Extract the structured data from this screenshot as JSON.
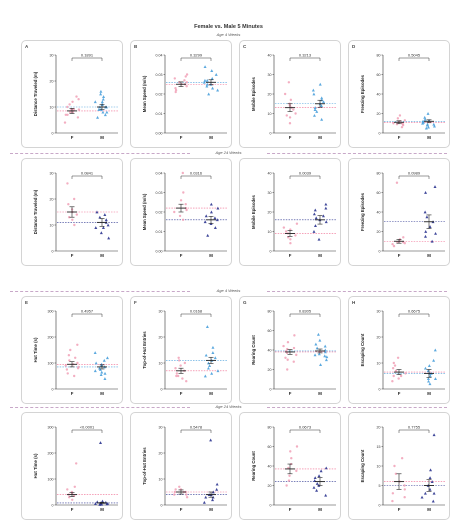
{
  "figure": {
    "title": "Female vs. Male 5 Minutes",
    "age_labels": [
      "Age 4 Weeks",
      "Age 24 Weeks",
      "Age 4 Weeks",
      "Age 24 Weeks"
    ]
  },
  "colors": {
    "female": "#f1a0b6",
    "female_line": "#f06a8f",
    "male_light": "#4aa0dc",
    "male_dark": "#2c3590",
    "error_bar": "#222222",
    "separator": "#c8a8c8",
    "panel_border": "#d4d4d4"
  },
  "chart_data": [
    {
      "letter": "A",
      "type": "scatter",
      "ylabel": "Distance Traveled (m)",
      "yticks": [
        "0",
        "10",
        "20",
        "30"
      ],
      "ylim": [
        0,
        30
      ],
      "categories": [
        "F",
        "M"
      ],
      "p_value": "0.1891",
      "male_color": "light",
      "series": [
        {
          "name": "F",
          "mean": 8.5,
          "sem": 1.0,
          "values": [
            4,
            6,
            7,
            8,
            8,
            9,
            9,
            10,
            11,
            12,
            13,
            14,
            7,
            9
          ]
        },
        {
          "name": "M",
          "mean": 10,
          "sem": 0.9,
          "values": [
            6,
            7,
            8,
            9,
            9,
            10,
            10,
            11,
            11,
            12,
            12,
            13,
            14,
            15,
            8,
            10,
            16
          ]
        }
      ]
    },
    {
      "letter": "B",
      "type": "scatter",
      "ylabel": "Mean Speed (m/s)",
      "yticks": [
        "0.00",
        "0.01",
        "0.02",
        "0.03",
        "0.04"
      ],
      "ylim": [
        0,
        0.04
      ],
      "categories": [
        "F",
        "M"
      ],
      "p_value": "0.3299",
      "male_color": "light",
      "series": [
        {
          "name": "F",
          "mean": 0.025,
          "sem": 0.0012,
          "values": [
            0.021,
            0.023,
            0.024,
            0.025,
            0.025,
            0.026,
            0.027,
            0.028,
            0.029,
            0.03,
            0.022,
            0.026
          ]
        },
        {
          "name": "M",
          "mean": 0.026,
          "sem": 0.0013,
          "values": [
            0.02,
            0.022,
            0.024,
            0.025,
            0.026,
            0.027,
            0.028,
            0.03,
            0.032,
            0.034,
            0.023,
            0.027,
            0.025
          ]
        }
      ]
    },
    {
      "letter": "C",
      "type": "scatter",
      "ylabel": "Mobile Episodes",
      "yticks": [
        "0",
        "10",
        "20",
        "30",
        "40"
      ],
      "ylim": [
        0,
        40
      ],
      "categories": [
        "F",
        "M"
      ],
      "p_value": "0.3213",
      "male_color": "light",
      "series": [
        {
          "name": "F",
          "mean": 13,
          "sem": 2.0,
          "values": [
            5,
            8,
            10,
            12,
            13,
            15,
            17,
            20,
            26,
            9,
            14
          ]
        },
        {
          "name": "M",
          "mean": 15,
          "sem": 1.8,
          "values": [
            7,
            9,
            11,
            13,
            15,
            16,
            18,
            20,
            22,
            25,
            12,
            14,
            17
          ]
        }
      ]
    },
    {
      "letter": "D",
      "type": "scatter",
      "ylabel": "Freezing Episodes",
      "yticks": [
        "0",
        "20",
        "40",
        "60",
        "80"
      ],
      "ylim": [
        0,
        80
      ],
      "categories": [
        "F",
        "M"
      ],
      "p_value": "0.5045",
      "male_color": "light",
      "series": [
        {
          "name": "F",
          "mean": 11,
          "sem": 1.5,
          "values": [
            6,
            8,
            9,
            10,
            11,
            12,
            13,
            15,
            18,
            10,
            9
          ]
        },
        {
          "name": "M",
          "mean": 12,
          "sem": 1.5,
          "values": [
            5,
            7,
            8,
            9,
            10,
            12,
            13,
            14,
            16,
            20,
            11,
            9,
            6
          ]
        }
      ]
    },
    {
      "letter": "",
      "type": "scatter",
      "ylabel": "Distance Traveled (m)",
      "yticks": [
        "0",
        "10",
        "20",
        "30"
      ],
      "ylim": [
        0,
        30
      ],
      "categories": [
        "F",
        "M"
      ],
      "p_value": "0.0841",
      "male_color": "dark",
      "series": [
        {
          "name": "F",
          "mean": 15,
          "sem": 2.0,
          "values": [
            10,
            12,
            14,
            15,
            16,
            18,
            20,
            26,
            13
          ]
        },
        {
          "name": "M",
          "mean": 11,
          "sem": 1.5,
          "values": [
            5,
            7,
            9,
            10,
            11,
            12,
            13,
            15,
            14,
            9
          ]
        }
      ]
    },
    {
      "letter": "",
      "type": "scatter",
      "ylabel": "Mean Speed (m/s)",
      "yticks": [
        "0.00",
        "0.01",
        "0.02",
        "0.03",
        "0.04"
      ],
      "ylim": [
        0,
        0.04
      ],
      "categories": [
        "F",
        "M"
      ],
      "p_value": "0.0316",
      "male_color": "dark",
      "series": [
        {
          "name": "F",
          "mean": 0.022,
          "sem": 0.002,
          "values": [
            0.016,
            0.018,
            0.02,
            0.022,
            0.024,
            0.026,
            0.03,
            0.04,
            0.021
          ]
        },
        {
          "name": "M",
          "mean": 0.016,
          "sem": 0.0018,
          "values": [
            0.008,
            0.012,
            0.014,
            0.016,
            0.017,
            0.018,
            0.02,
            0.022,
            0.024,
            0.015
          ]
        }
      ]
    },
    {
      "letter": "",
      "type": "scatter",
      "ylabel": "Mobile Episodes",
      "yticks": [
        "0",
        "10",
        "20",
        "30",
        "40"
      ],
      "ylim": [
        0,
        40
      ],
      "categories": [
        "F",
        "M"
      ],
      "p_value": "0.0039",
      "male_color": "dark",
      "series": [
        {
          "name": "F",
          "mean": 9,
          "sem": 1.5,
          "values": [
            4,
            6,
            8,
            9,
            10,
            11,
            12,
            14,
            7
          ]
        },
        {
          "name": "M",
          "mean": 16,
          "sem": 2.2,
          "values": [
            6,
            10,
            13,
            15,
            16,
            18,
            19,
            21,
            22,
            24,
            17
          ]
        }
      ]
    },
    {
      "letter": "",
      "type": "scatter",
      "ylabel": "Freezing Episodes",
      "yticks": [
        "0",
        "20",
        "40",
        "60",
        "80"
      ],
      "ylim": [
        0,
        80
      ],
      "categories": [
        "F",
        "M"
      ],
      "p_value": "0.0989",
      "male_color": "dark",
      "series": [
        {
          "name": "F",
          "mean": 10,
          "sem": 2.0,
          "values": [
            5,
            7,
            8,
            9,
            10,
            12,
            14,
            70,
            9
          ]
        },
        {
          "name": "M",
          "mean": 30,
          "sem": 7.0,
          "values": [
            10,
            15,
            20,
            25,
            30,
            35,
            40,
            60,
            66,
            18
          ]
        }
      ]
    },
    {
      "letter": "E",
      "type": "scatter",
      "ylabel": "Hut Time (s)",
      "yticks": [
        "0",
        "100",
        "200",
        "300"
      ],
      "ylim": [
        0,
        300
      ],
      "categories": [
        "F",
        "M"
      ],
      "p_value": "0.4957",
      "male_color": "light",
      "series": [
        {
          "name": "F",
          "mean": 95,
          "sem": 10,
          "values": [
            50,
            60,
            75,
            85,
            90,
            95,
            100,
            110,
            120,
            130,
            150,
            170,
            80
          ]
        },
        {
          "name": "M",
          "mean": 85,
          "sem": 8,
          "values": [
            40,
            55,
            65,
            75,
            80,
            85,
            90,
            95,
            100,
            110,
            120,
            140,
            70,
            60
          ]
        }
      ]
    },
    {
      "letter": "F",
      "type": "scatter",
      "ylabel": "Top-of-Hut Entries",
      "yticks": [
        "0",
        "10",
        "20",
        "30"
      ],
      "ylim": [
        0,
        30
      ],
      "categories": [
        "F",
        "M"
      ],
      "p_value": "0.0168",
      "male_color": "light",
      "series": [
        {
          "name": "F",
          "mean": 7,
          "sem": 1.0,
          "values": [
            3,
            4,
            5,
            6,
            7,
            8,
            9,
            10,
            11,
            12,
            5
          ]
        },
        {
          "name": "M",
          "mean": 11,
          "sem": 1.2,
          "values": [
            5,
            6,
            8,
            10,
            11,
            12,
            13,
            14,
            16,
            24,
            9,
            7
          ]
        }
      ]
    },
    {
      "letter": "G",
      "type": "scatter",
      "ylabel": "Rearing Count",
      "yticks": [
        "0",
        "20",
        "40",
        "60",
        "80"
      ],
      "ylim": [
        0,
        80
      ],
      "categories": [
        "F",
        "M"
      ],
      "p_value": "0.8305",
      "male_color": "light",
      "series": [
        {
          "name": "F",
          "mean": 38,
          "sem": 2.5,
          "values": [
            20,
            28,
            32,
            35,
            37,
            39,
            41,
            44,
            48,
            55,
            30,
            42
          ]
        },
        {
          "name": "M",
          "mean": 39,
          "sem": 2.0,
          "values": [
            25,
            30,
            33,
            35,
            38,
            40,
            42,
            44,
            46,
            50,
            56,
            36,
            34
          ]
        }
      ]
    },
    {
      "letter": "H",
      "type": "scatter",
      "ylabel": "Escaping Count",
      "yticks": [
        "0",
        "10",
        "20",
        "30"
      ],
      "ylim": [
        0,
        30
      ],
      "categories": [
        "F",
        "M"
      ],
      "p_value": "0.6675",
      "male_color": "light",
      "series": [
        {
          "name": "F",
          "mean": 6.5,
          "sem": 1.0,
          "values": [
            3,
            4,
            5,
            6,
            7,
            8,
            9,
            10,
            12,
            5
          ]
        },
        {
          "name": "M",
          "mean": 6,
          "sem": 1.5,
          "values": [
            2,
            3,
            4,
            5,
            6,
            7,
            8,
            9,
            11,
            15,
            4,
            6
          ]
        }
      ]
    },
    {
      "letter": "",
      "type": "scatter",
      "ylabel": "Hut Time (s)",
      "yticks": [
        "0",
        "100",
        "200",
        "300"
      ],
      "ylim": [
        0,
        300
      ],
      "categories": [
        "F",
        "M"
      ],
      "p_value": "<0.0001",
      "male_color": "dark",
      "series": [
        {
          "name": "F",
          "mean": 40,
          "sem": 8,
          "values": [
            20,
            30,
            35,
            40,
            45,
            50,
            60,
            70,
            160
          ]
        },
        {
          "name": "M",
          "mean": 8,
          "sem": 2,
          "values": [
            2,
            4,
            5,
            6,
            8,
            10,
            12,
            15,
            5,
            3,
            240
          ]
        }
      ]
    },
    {
      "letter": "",
      "type": "scatter",
      "ylabel": "Top-of-Hut Entries",
      "yticks": [
        "0",
        "10",
        "20",
        "30"
      ],
      "ylim": [
        0,
        30
      ],
      "categories": [
        "F",
        "M"
      ],
      "p_value": "0.5478",
      "male_color": "dark",
      "series": [
        {
          "name": "F",
          "mean": 5,
          "sem": 0.8,
          "values": [
            3,
            4,
            4,
            5,
            5,
            6,
            6,
            7,
            5
          ]
        },
        {
          "name": "M",
          "mean": 4,
          "sem": 1.0,
          "values": [
            1,
            2,
            3,
            4,
            4,
            5,
            6,
            8,
            3,
            25
          ]
        }
      ]
    },
    {
      "letter": "",
      "type": "scatter",
      "ylabel": "Rearing Count",
      "yticks": [
        "0",
        "20",
        "40",
        "60",
        "80"
      ],
      "ylim": [
        0,
        80
      ],
      "categories": [
        "F",
        "M"
      ],
      "p_value": "0.0673",
      "male_color": "dark",
      "series": [
        {
          "name": "F",
          "mean": 37,
          "sem": 5,
          "values": [
            20,
            25,
            30,
            35,
            38,
            42,
            48,
            55,
            60
          ]
        },
        {
          "name": "M",
          "mean": 24,
          "sem": 4,
          "values": [
            10,
            15,
            18,
            20,
            22,
            25,
            28,
            30,
            35,
            38
          ]
        }
      ]
    },
    {
      "letter": "",
      "type": "scatter",
      "ylabel": "Escaping Count",
      "yticks": [
        "0",
        "5",
        "10",
        "15",
        "20"
      ],
      "ylim": [
        0,
        20
      ],
      "categories": [
        "F",
        "M"
      ],
      "p_value": "0.7755",
      "male_color": "dark",
      "series": [
        {
          "name": "F",
          "mean": 6,
          "sem": 2,
          "values": [
            1,
            2,
            3,
            5,
            6,
            8,
            10,
            12,
            4
          ]
        },
        {
          "name": "M",
          "mean": 5,
          "sem": 1.5,
          "values": [
            1,
            2,
            3,
            4,
            5,
            6,
            7,
            9,
            18,
            3
          ]
        }
      ]
    }
  ]
}
